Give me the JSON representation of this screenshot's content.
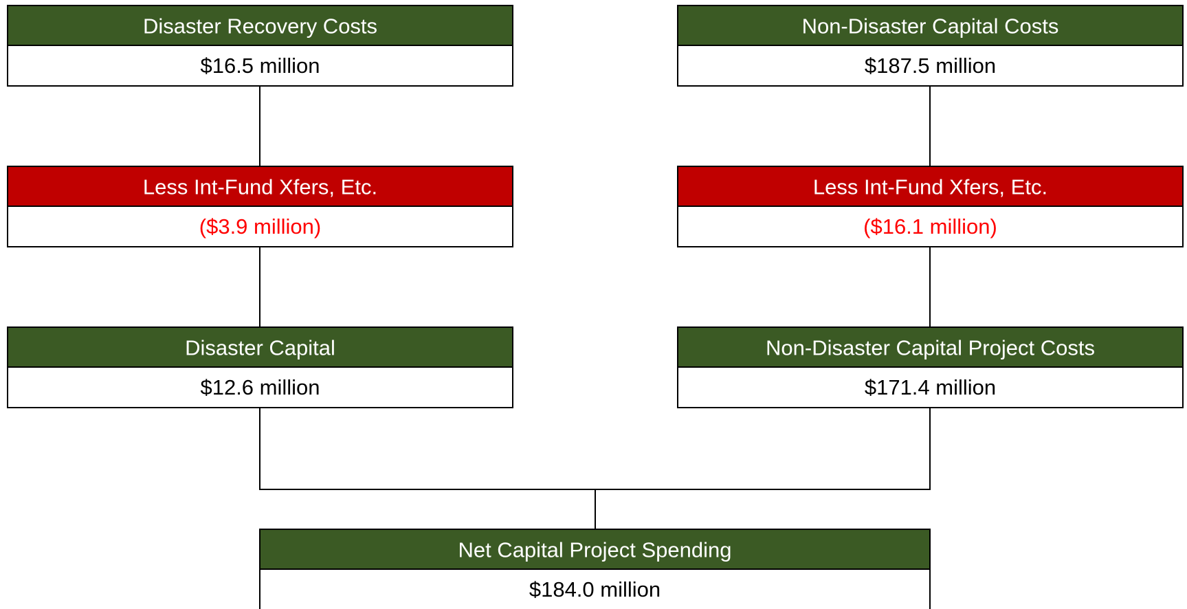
{
  "nodes": [
    {
      "label": "Disaster Recovery Costs",
      "value": "$16.5 million"
    },
    {
      "label": "Non-Disaster Capital Costs",
      "value": "$187.5 million"
    },
    {
      "label": "Less Int-Fund Xfers, Etc.",
      "value": "($3.9 million)"
    },
    {
      "label": "Less Int-Fund Xfers, Etc.",
      "value": "($16.1 million)"
    },
    {
      "label": "Disaster Capital",
      "value": "$12.6 million"
    },
    {
      "label": "Non-Disaster Capital Project Costs",
      "value": "$171.4 million"
    },
    {
      "label": "Net Capital Project Spending",
      "value": "$184.0 million"
    }
  ]
}
